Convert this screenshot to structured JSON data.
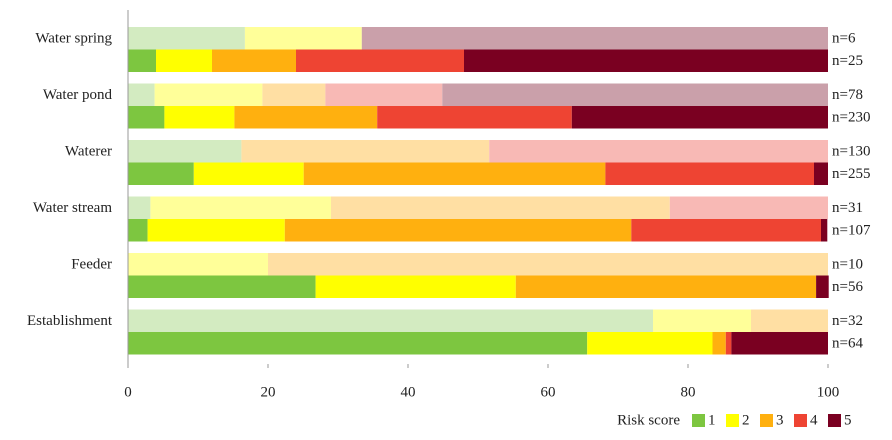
{
  "chart_data": {
    "type": "stacked-bar-horizontal",
    "categories": [
      "Water spring",
      "Water pond",
      "Waterer",
      "Water stream",
      "Feeder",
      "Establishment"
    ],
    "light_labels": [
      "n=6",
      "n=78",
      "n=130",
      "n=31",
      "n=10",
      "n=32"
    ],
    "labels": [
      "n=25",
      "n=230",
      "n=255",
      "n=107",
      "n=56",
      "n=64"
    ],
    "legend_title": "Risk score",
    "series": [
      {
        "name": "1",
        "color": "#7dc640",
        "light_color": "#d3ebc1",
        "light_values": [
          16.7,
          3.8,
          16.2,
          3.2,
          0,
          75
        ],
        "values": [
          4,
          5.2,
          9.4,
          2.8,
          26.8,
          65.6
        ]
      },
      {
        "name": "2",
        "color": "#ffff00",
        "light_color": "#ffff99",
        "light_values": [
          16.7,
          15.4,
          0,
          25.8,
          20,
          14
        ],
        "values": [
          8,
          10,
          15.7,
          19.6,
          28.6,
          17.9
        ]
      },
      {
        "name": "3",
        "color": "#ffb00f",
        "light_color": "#ffdfa3",
        "light_values": [
          0,
          9,
          35.4,
          48.4,
          80,
          11
        ],
        "values": [
          12,
          20.4,
          43.1,
          49.5,
          42.9,
          1.9
        ]
      },
      {
        "name": "4",
        "color": "#ee4433",
        "light_color": "#f8b9b5",
        "light_values": [
          0,
          16.7,
          48.4,
          22.6,
          0,
          0
        ],
        "values": [
          24,
          27.8,
          29.8,
          27.1,
          0,
          0.8
        ]
      },
      {
        "name": "5",
        "color": "#7a0021",
        "light_color": "#caa0aa",
        "light_values": [
          66.6,
          55.1,
          0,
          0,
          0,
          0
        ],
        "values": [
          52,
          36.6,
          2,
          0.9,
          1.8,
          13.8
        ]
      }
    ],
    "xlim": [
      0,
      100
    ],
    "xticks": [
      0,
      20,
      40,
      60,
      80,
      100
    ]
  }
}
